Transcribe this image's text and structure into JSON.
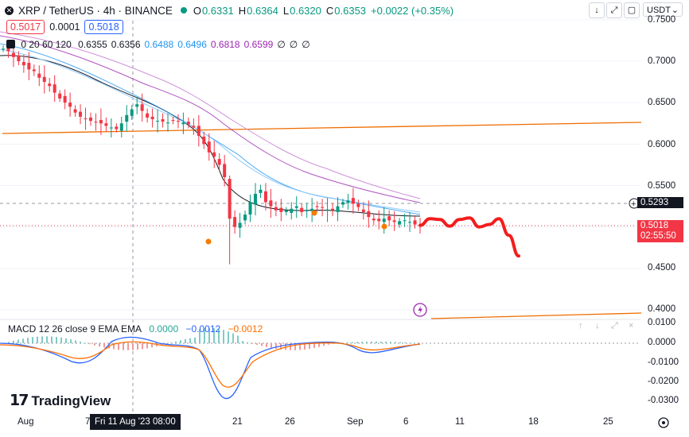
{
  "header": {
    "symbol": "XRP / TetherUS · 4h · BINANCE",
    "o_label": "O",
    "o": "0.6331",
    "h_label": "H",
    "h": "0.6364",
    "l_label": "L",
    "l": "0.6320",
    "c_label": "C",
    "c": "0.6353",
    "change": "+0.0022 (+0.35%)",
    "sell": "0.5017",
    "spread": "0.0001",
    "buy": "0.5018",
    "ma_label": "0 20 60 120",
    "ma_values": [
      {
        "text": "0.6355",
        "color": "#131722"
      },
      {
        "text": "0.6356",
        "color": "#131722"
      },
      {
        "text": "0.6488",
        "color": "#2196f3"
      },
      {
        "text": "0.6496",
        "color": "#2196f3"
      },
      {
        "text": "0.6818",
        "color": "#9c27b0"
      },
      {
        "text": "0.6599",
        "color": "#9c27b0"
      },
      {
        "text": "∅",
        "color": "#131722"
      },
      {
        "text": "∅",
        "color": "#131722"
      },
      {
        "text": "∅",
        "color": "#131722"
      }
    ],
    "currency": "USDT"
  },
  "macd": {
    "label": "MACD 12 26 close 9 EMA EMA",
    "v1": "0.0000",
    "v2": "−0.0012",
    "v3": "−0.0012"
  },
  "price_axis": [
    "0.7500",
    "0.7000",
    "0.6500",
    "0.6000",
    "0.5500",
    "0.4500",
    "0.4000"
  ],
  "crosshair_price": "0.5293",
  "last_price": "0.5018",
  "countdown": "02:55:50",
  "macd_axis": [
    "0.0100",
    "0.0000",
    "-0.0100",
    "-0.0200",
    "-0.0300"
  ],
  "time_axis": [
    "Aug",
    "7",
    "21",
    "26",
    "Sep",
    "6",
    "11",
    "18",
    "25"
  ],
  "cursor_date": "Fri 11 Aug '23   08:00",
  "logo": "TradingView",
  "chart_data": {
    "type": "candlestick",
    "title": "XRP / TetherUS · 4h · BINANCE",
    "ylim": [
      0.4,
      0.75
    ],
    "closes": [
      0.715,
      0.712,
      0.705,
      0.7,
      0.695,
      0.69,
      0.688,
      0.68,
      0.675,
      0.67,
      0.662,
      0.655,
      0.65,
      0.645,
      0.638,
      0.633,
      0.63,
      0.628,
      0.626,
      0.625,
      0.622,
      0.62,
      0.618,
      0.625,
      0.635,
      0.642,
      0.648,
      0.64,
      0.632,
      0.63,
      0.628,
      0.627,
      0.626,
      0.628,
      0.627,
      0.626,
      0.624,
      0.62,
      0.61,
      0.6,
      0.59,
      0.585,
      0.575,
      0.56,
      0.51,
      0.5,
      0.505,
      0.515,
      0.53,
      0.54,
      0.545,
      0.53,
      0.525,
      0.52,
      0.518,
      0.52,
      0.522,
      0.525,
      0.518,
      0.52,
      0.522,
      0.524,
      0.523,
      0.521,
      0.52,
      0.525,
      0.53,
      0.532,
      0.528,
      0.524,
      0.518,
      0.512,
      0.508,
      0.507,
      0.51,
      0.508,
      0.506,
      0.507,
      0.508,
      0.506,
      0.503,
      0.501
    ],
    "series": [
      {
        "name": "MA 20",
        "color": "#131722"
      },
      {
        "name": "MA 60",
        "color": "#2196f3"
      },
      {
        "name": "MA 120",
        "color": "#9c27b0"
      }
    ],
    "trendlines": [
      {
        "from": [
          "Aug",
          0.613
        ],
        "to": [
          "25",
          0.627
        ],
        "color": "#ef6c00"
      },
      {
        "from": [
          "Sep 6",
          0.398
        ],
        "to": [
          "25",
          0.403
        ],
        "color": "#ef6c00"
      }
    ],
    "projection_path": [
      0.502,
      0.51,
      0.509,
      0.501,
      0.509,
      0.511,
      0.5,
      0.503,
      0.51,
      0.49,
      0.465
    ],
    "macd_ylim": [
      -0.035,
      0.012
    ]
  }
}
